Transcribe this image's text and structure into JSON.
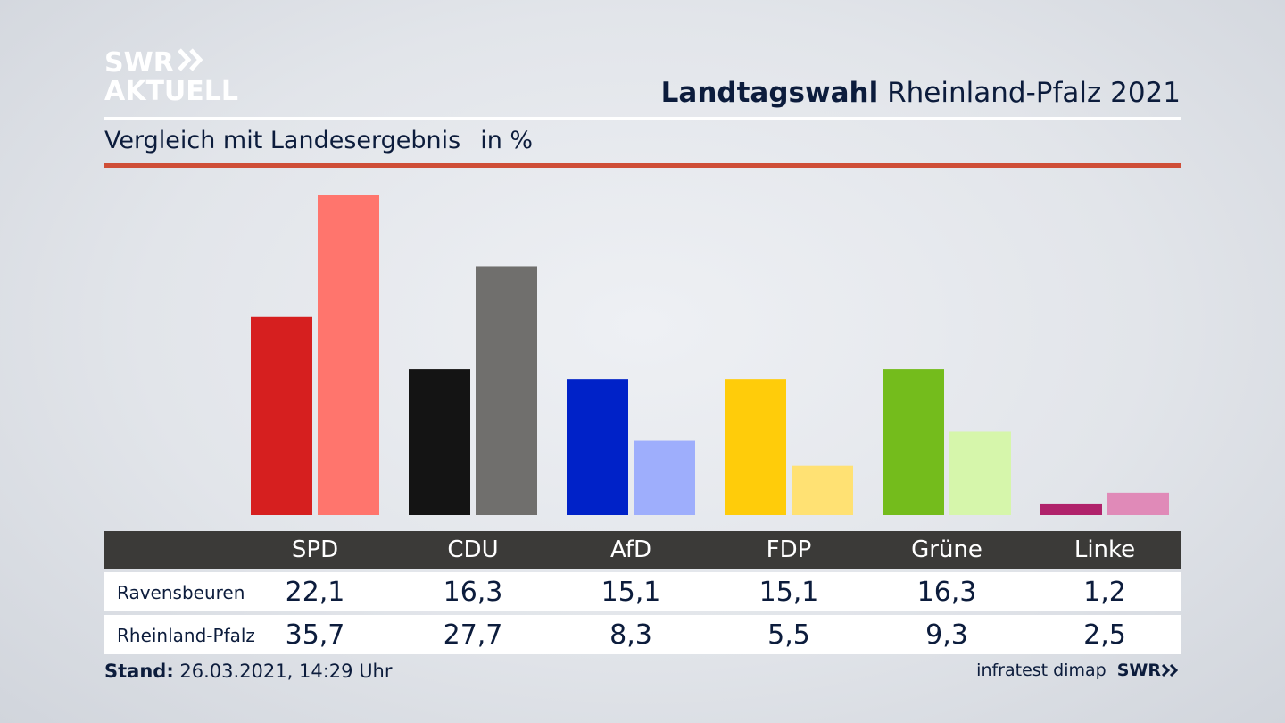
{
  "header": {
    "logo_line1": "SWR",
    "logo_line2": "AKTUELL",
    "title_bold": "Landtagswahl",
    "title_rest": "Rheinland-Pfalz 2021",
    "subtitle": "Vergleich mit Landesergebnis",
    "unit": "in %"
  },
  "colors": {
    "accent_rule": "#cf4e37",
    "table_header": "#3b3a38"
  },
  "chart_data": {
    "type": "bar",
    "categories": [
      "SPD",
      "CDU",
      "AfD",
      "FDP",
      "Grüne",
      "Linke"
    ],
    "series": [
      {
        "name": "Ravensbeuren",
        "values": [
          22.1,
          16.3,
          15.1,
          15.1,
          16.3,
          1.2
        ],
        "colors": [
          "#d61f1f",
          "#141414",
          "#0022c8",
          "#ffcc0a",
          "#74bc1c",
          "#b0226b"
        ]
      },
      {
        "name": "Rheinland-Pfalz",
        "values": [
          35.7,
          27.7,
          8.3,
          5.5,
          9.3,
          2.5
        ],
        "colors": [
          "#ff756d",
          "#706f6d",
          "#9eaefc",
          "#ffe173",
          "#d6f6ab",
          "#e08ab8"
        ]
      }
    ],
    "ylim": [
      0,
      36
    ]
  },
  "table": {
    "row_labels": [
      "Ravensbeuren",
      "Rheinland-Pfalz"
    ],
    "values": [
      [
        "22,1",
        "16,3",
        "15,1",
        "15,1",
        "16,3",
        "1,2"
      ],
      [
        "35,7",
        "27,7",
        "8,3",
        "5,5",
        "9,3",
        "2,5"
      ]
    ]
  },
  "footer": {
    "stand_label": "Stand:",
    "stand_value": "26.03.2021, 14:29 Uhr",
    "source": "infratest dimap",
    "brand": "SWR"
  }
}
